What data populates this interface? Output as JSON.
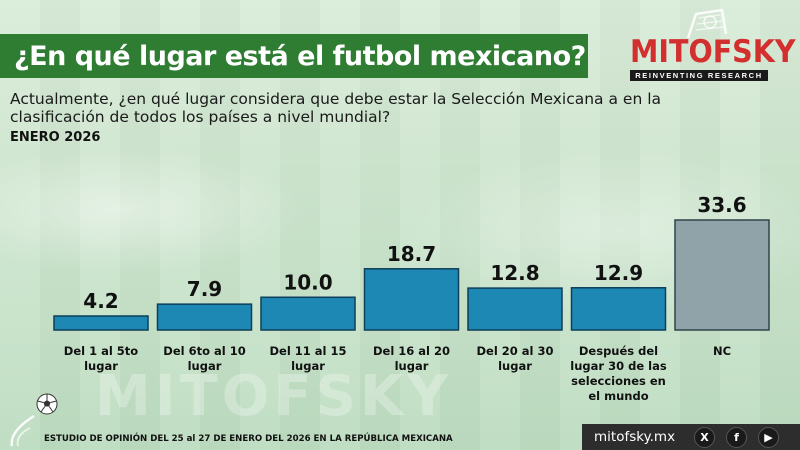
{
  "header": {
    "title": "¿En qué lugar está el futbol mexicano?",
    "logo_name": "MITOFSKY",
    "logo_tagline": "REINVENTING RESEARCH"
  },
  "question": "Actualmente, ¿en qué lugar considera que debe estar la Selección Mexicana a en la clasificación de todos los países a nivel mundial?",
  "date": "ENERO 2026",
  "watermark": "MITOFSKY",
  "footer": {
    "note": "ESTUDIO DE OPINIÓN DEL 25 al 27 DE ENERO DEL 2026 EN LA REPÚBLICA MEXICANA",
    "site": "mitofsky.mx",
    "social_icons": [
      "x-icon",
      "facebook-icon",
      "youtube-icon"
    ]
  },
  "colors": {
    "title_band": "#2e7d32",
    "bar": "#1e88b4",
    "bar_nc": "#8fa3a8",
    "logo": "#d32f2f"
  },
  "chart_data": {
    "type": "bar",
    "title": "",
    "xlabel": "",
    "ylabel": "",
    "ylim": [
      0,
      33.6
    ],
    "grid": false,
    "categories": [
      [
        "Del 1 al 5to",
        "lugar"
      ],
      [
        "Del 6to al 10",
        "lugar"
      ],
      [
        "Del 11 al 15",
        "lugar"
      ],
      [
        "Del 16 al 20",
        "lugar"
      ],
      [
        "Del 20 al 30",
        "lugar"
      ],
      [
        "Después del",
        "lugar 30 de las",
        "selecciones en",
        "el mundo"
      ],
      [
        "NC"
      ]
    ],
    "values": [
      4.2,
      7.9,
      10.0,
      18.7,
      12.8,
      12.9,
      33.6
    ],
    "value_labels": [
      "4.2",
      "7.9",
      "10.0",
      "18.7",
      "12.8",
      "12.9",
      "33.6"
    ]
  }
}
